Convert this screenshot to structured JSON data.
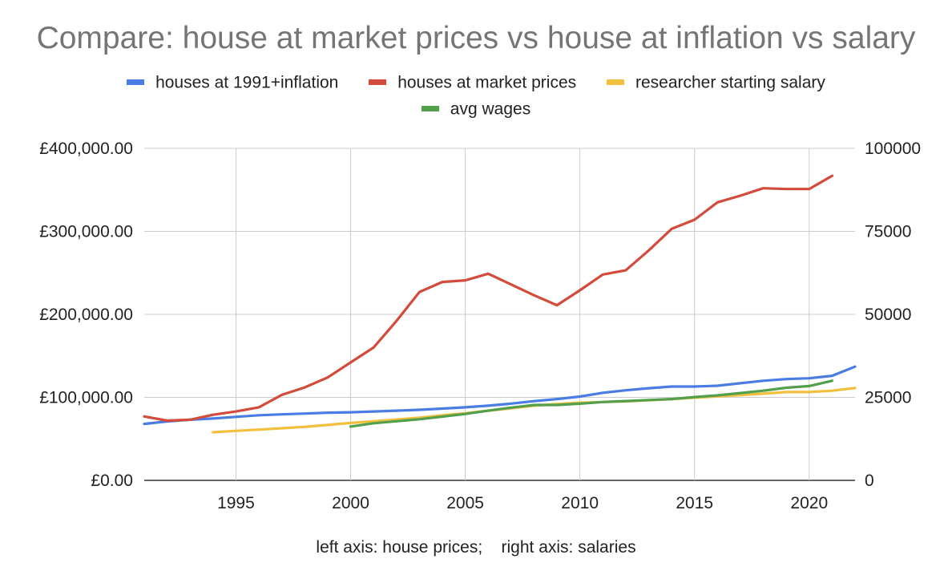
{
  "chart_data": {
    "type": "line",
    "title": "Compare: house at market prices vs house at inflation vs salary",
    "xlabel": "left axis: house prices;    right axis: salaries",
    "x_range": [
      1991,
      2022
    ],
    "x_ticks": [
      1995,
      2000,
      2005,
      2010,
      2015,
      2020
    ],
    "y_left": {
      "range": [
        0,
        400000
      ],
      "ticks": [
        0,
        100000,
        200000,
        300000,
        400000
      ],
      "tick_labels": [
        "£0.00",
        "£100,000.00",
        "£200,000.00",
        "£300,000.00",
        "£400,000.00"
      ]
    },
    "y_right": {
      "range": [
        0,
        100000
      ],
      "ticks": [
        0,
        25000,
        50000,
        75000,
        100000
      ],
      "tick_labels": [
        "0",
        "25000",
        "50000",
        "75000",
        "100000"
      ]
    },
    "grid": true,
    "legend_position": "top",
    "series": [
      {
        "name": "houses at 1991+inflation",
        "axis": "left",
        "color": "#4a7de3",
        "x": [
          1991,
          1992,
          1993,
          1994,
          1995,
          1996,
          1997,
          1998,
          1999,
          2000,
          2001,
          2002,
          2003,
          2004,
          2005,
          2006,
          2007,
          2008,
          2009,
          2010,
          2011,
          2012,
          2013,
          2014,
          2015,
          2016,
          2017,
          2018,
          2019,
          2020,
          2021,
          2022
        ],
        "values": [
          68000,
          71000,
          73000,
          74500,
          76500,
          78500,
          79500,
          80500,
          81500,
          82000,
          83000,
          84000,
          85000,
          86500,
          88000,
          90000,
          92500,
          95500,
          98000,
          101000,
          105500,
          108500,
          111000,
          113000,
          113000,
          114000,
          117000,
          120000,
          122000,
          123000,
          126000,
          137000
        ]
      },
      {
        "name": "houses at market prices",
        "axis": "left",
        "color": "#d24b3b",
        "x": [
          1991,
          1992,
          1993,
          1994,
          1995,
          1996,
          1997,
          1998,
          1999,
          2000,
          2001,
          2002,
          2003,
          2004,
          2005,
          2006,
          2007,
          2008,
          2009,
          2010,
          2011,
          2012,
          2013,
          2014,
          2015,
          2016,
          2017,
          2018,
          2019,
          2020,
          2021
        ],
        "values": [
          77000,
          72000,
          73000,
          79000,
          83000,
          88000,
          103000,
          112000,
          124000,
          142000,
          160000,
          192000,
          227000,
          239000,
          241000,
          249000,
          236000,
          223000,
          211000,
          229000,
          248000,
          253000,
          277000,
          303000,
          314000,
          335000,
          343000,
          352000,
          351000,
          351000,
          367000
        ]
      },
      {
        "name": "researcher starting salary",
        "axis": "right",
        "color": "#f2bf3f",
        "x": [
          1994,
          1995,
          1996,
          1997,
          1998,
          1999,
          2000,
          2001,
          2002,
          2003,
          2004,
          2005,
          2006,
          2007,
          2008,
          2009,
          2010,
          2011,
          2012,
          2013,
          2014,
          2015,
          2016,
          2017,
          2018,
          2019,
          2020,
          2021,
          2022
        ],
        "values": [
          14500,
          14900,
          15300,
          15700,
          16100,
          16700,
          17300,
          17800,
          18300,
          18900,
          19600,
          20200,
          21000,
          21700,
          22500,
          23000,
          23400,
          23600,
          23800,
          24100,
          24500,
          24900,
          25300,
          25700,
          26100,
          26600,
          26600,
          27000,
          27800
        ]
      },
      {
        "name": "avg wages",
        "axis": "right",
        "color": "#52a04c",
        "x": [
          2000,
          2001,
          2002,
          2003,
          2004,
          2005,
          2006,
          2007,
          2008,
          2009,
          2010,
          2011,
          2012,
          2013,
          2014,
          2015,
          2016,
          2017,
          2018,
          2019,
          2020,
          2021
        ],
        "values": [
          16200,
          17200,
          17800,
          18400,
          19200,
          20000,
          21000,
          21900,
          22700,
          22700,
          23100,
          23600,
          23900,
          24200,
          24500,
          25100,
          25600,
          26300,
          27000,
          27900,
          28400,
          30000
        ]
      }
    ]
  }
}
